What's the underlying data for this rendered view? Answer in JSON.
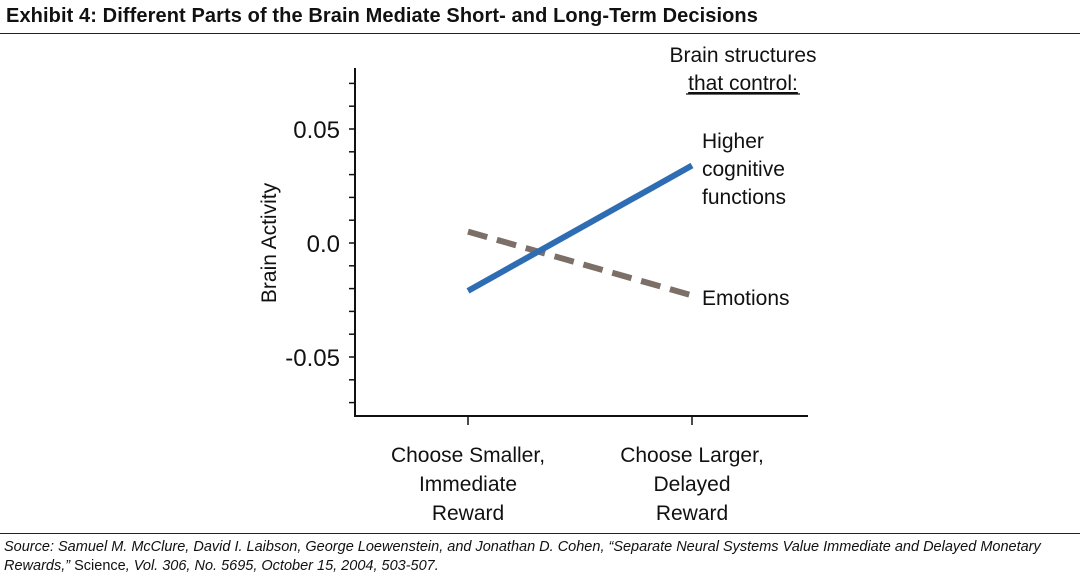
{
  "title": "Exhibit 4: Different Parts of the Brain Mediate Short- and Long-Term Decisions",
  "source": {
    "lead": "Source: Samuel M. McClure, David I. Laibson, George Loewenstein, and Jonathan D. Cohen, “Separate Neural Systems Value Immediate and Delayed Monetary Rewards,”",
    "journal": " Science",
    "tail": ", Vol. 306, No. 5695, October 15, 2004, 503-507."
  },
  "chart_data": {
    "type": "line",
    "ylabel": "Brain Activity",
    "ylim": [
      -0.075,
      0.075
    ],
    "yticks": [
      {
        "value": 0.05,
        "label": "0.05"
      },
      {
        "value": 0.0,
        "label": "0.0"
      },
      {
        "value": -0.05,
        "label": "-0.05"
      }
    ],
    "categories": [
      [
        "Choose Smaller,",
        "Immediate",
        "Reward"
      ],
      [
        "Choose Larger,",
        "Delayed",
        "Reward"
      ]
    ],
    "legend_heading": [
      "Brain structures",
      "that control:"
    ],
    "series": [
      {
        "name": [
          "Higher",
          "cognitive",
          "functions"
        ],
        "values": [
          -0.021,
          0.034
        ],
        "color": "#2e6db4",
        "style": "solid"
      },
      {
        "name": [
          "Emotions"
        ],
        "values": [
          0.005,
          -0.023
        ],
        "color": "#7b6f67",
        "style": "dashed"
      }
    ]
  }
}
